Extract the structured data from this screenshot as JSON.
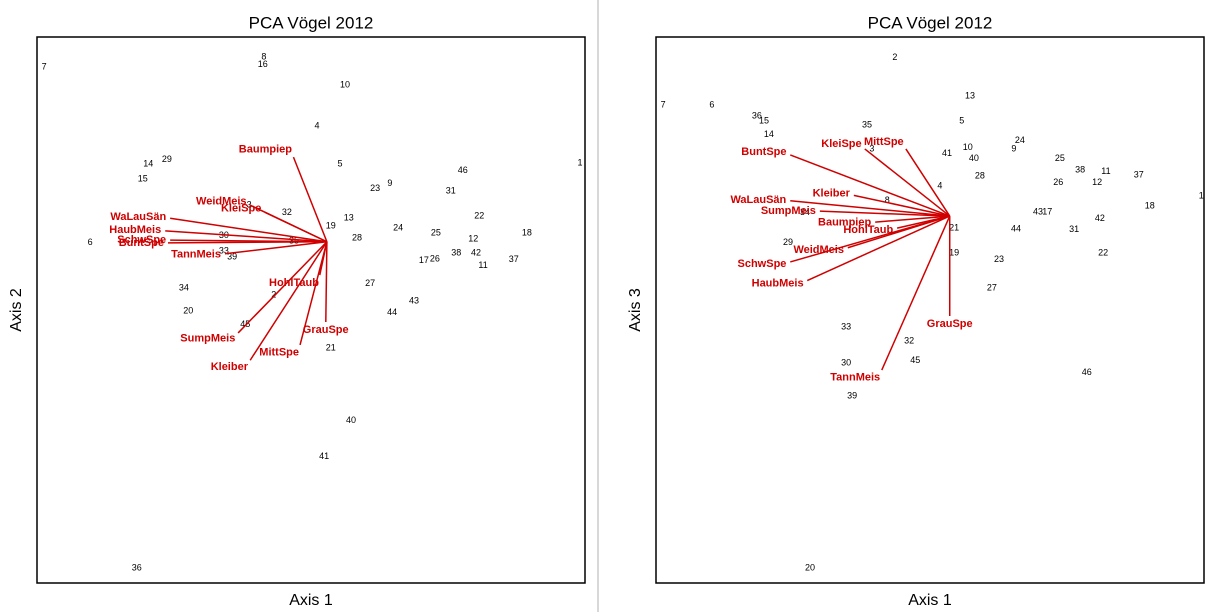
{
  "chart_data": [
    {
      "type": "scatter",
      "title": "PCA Vögel 2012",
      "xlabel": "Axis 1",
      "ylabel": "Axis 2",
      "xlim": [
        0,
        100
      ],
      "ylim": [
        0,
        100
      ],
      "point_color": "#000000",
      "arrow_color": "#d00000",
      "points": {
        "labels": [
          "7",
          "8",
          "16",
          "10",
          "4",
          "14",
          "29",
          "15",
          "5",
          "1",
          "46",
          "9",
          "23",
          "31",
          "32",
          "3",
          "19",
          "13",
          "22",
          "24",
          "25",
          "28",
          "18",
          "30",
          "12",
          "6",
          "35",
          "33",
          "39",
          "17",
          "26",
          "38",
          "42",
          "11",
          "37",
          "34",
          "27",
          "20",
          "43",
          "44",
          "2",
          "45",
          "21",
          "40",
          "41",
          "36"
        ],
        "x": [
          1.3,
          41.4,
          41.2,
          56.2,
          51.1,
          20.3,
          23.7,
          19.3,
          55.3,
          99.1,
          77.7,
          64.4,
          61.7,
          75.5,
          45.6,
          38.7,
          53.6,
          56.9,
          80.7,
          65.9,
          72.8,
          58.4,
          89.4,
          34.1,
          79.6,
          9.7,
          46.9,
          34.1,
          35.6,
          70.6,
          72.6,
          76.5,
          80.1,
          81.4,
          87.0,
          26.8,
          60.8,
          27.6,
          68.8,
          64.8,
          43.2,
          38.0,
          53.6,
          57.3,
          52.4,
          18.2
        ],
        "y": [
          94.5,
          96.3,
          94.9,
          91.2,
          83.7,
          76.7,
          77.5,
          74.0,
          76.7,
          76.9,
          75.5,
          73.1,
          72.2,
          71.8,
          67.8,
          69.2,
          65.4,
          66.8,
          67.2,
          65.0,
          64.1,
          63.2,
          64.1,
          63.6,
          63.0,
          62.3,
          62.6,
          60.8,
          59.7,
          59.0,
          59.3,
          60.4,
          60.4,
          58.1,
          59.2,
          54.0,
          54.8,
          49.8,
          51.6,
          49.5,
          52.7,
          47.3,
          43.0,
          29.7,
          23.1,
          2.7
        ]
      },
      "arrows": {
        "origin": [
          52.9,
          62.5
        ],
        "labels": [
          "Baumpiep",
          "KleiSpe",
          "WeidMeis",
          "WaLauSän",
          "HaubMeis",
          "SchwSpe",
          "BuntSpe",
          "TannMeis",
          "HohlTaub",
          "GrauSpe",
          "MittSpe",
          "SumpMeis",
          "Kleiber"
        ],
        "x": [
          46.8,
          41.6,
          38.9,
          24.3,
          23.4,
          24.3,
          23.9,
          34.3,
          51.6,
          52.7,
          48.0,
          36.7,
          38.9
        ],
        "y": [
          78.0,
          67.9,
          69.2,
          66.8,
          64.5,
          62.8,
          62.3,
          60.3,
          56.4,
          47.8,
          43.6,
          45.8,
          40.8
        ]
      }
    },
    {
      "type": "scatter",
      "title": "PCA Vögel 2012",
      "xlabel": "Axis 1",
      "ylabel": "Axis 3",
      "xlim": [
        0,
        100
      ],
      "ylim": [
        0,
        100
      ],
      "point_color": "#000000",
      "arrow_color": "#d00000",
      "points": {
        "labels": [
          "2",
          "13",
          "7",
          "6",
          "36",
          "15",
          "14",
          "35",
          "5",
          "3",
          "41",
          "10",
          "40",
          "24",
          "9",
          "25",
          "28",
          "38",
          "11",
          "37",
          "26",
          "12",
          "4",
          "1",
          "18",
          "8",
          "34",
          "43",
          "17",
          "42",
          "44",
          "31",
          "21",
          "29",
          "19",
          "22",
          "23",
          "27",
          "33",
          "32",
          "45",
          "30",
          "46",
          "39",
          "20"
        ],
        "x": [
          43.6,
          57.3,
          1.3,
          10.2,
          18.4,
          19.7,
          20.6,
          38.5,
          55.8,
          39.4,
          53.1,
          56.9,
          58.0,
          66.4,
          65.3,
          73.7,
          59.1,
          77.4,
          82.1,
          88.1,
          73.4,
          80.5,
          51.8,
          99.5,
          90.1,
          42.2,
          27.2,
          69.7,
          71.4,
          81.0,
          65.7,
          76.3,
          54.4,
          24.1,
          54.4,
          81.6,
          62.6,
          61.3,
          34.7,
          46.2,
          47.3,
          34.7,
          78.6,
          35.8,
          28.1
        ],
        "y": [
          96.2,
          89.2,
          87.5,
          87.5,
          85.5,
          84.6,
          82.1,
          83.9,
          84.6,
          79.5,
          78.6,
          79.7,
          77.7,
          81.0,
          79.5,
          77.7,
          74.5,
          75.6,
          75.3,
          74.7,
          73.3,
          73.3,
          72.7,
          70.9,
          69.0,
          70.0,
          67.8,
          67.9,
          67.9,
          66.7,
          64.8,
          64.7,
          65.0,
          62.3,
          60.4,
          60.4,
          59.2,
          54.0,
          46.9,
          44.3,
          40.7,
          40.3,
          38.5,
          34.2,
          2.7
        ]
      },
      "arrows": {
        "origin": [
          53.6,
          67.2
        ],
        "labels": [
          "BuntSpe",
          "KleiSpe",
          "MittSpe",
          "WaLauSän",
          "Kleiber",
          "SumpMeis",
          "Baumpiep",
          "HohlTaub",
          "WeidMeis",
          "SchwSpe",
          "HaubMeis",
          "GrauSpe",
          "TannMeis"
        ],
        "x": [
          24.5,
          38.1,
          45.6,
          24.5,
          36.1,
          29.9,
          40.0,
          44.0,
          35.0,
          24.5,
          27.6,
          53.6,
          41.2
        ],
        "y": [
          78.4,
          79.5,
          79.5,
          70.0,
          71.0,
          68.1,
          66.1,
          65.0,
          61.4,
          58.8,
          55.4,
          48.9,
          39.0
        ]
      }
    }
  ]
}
